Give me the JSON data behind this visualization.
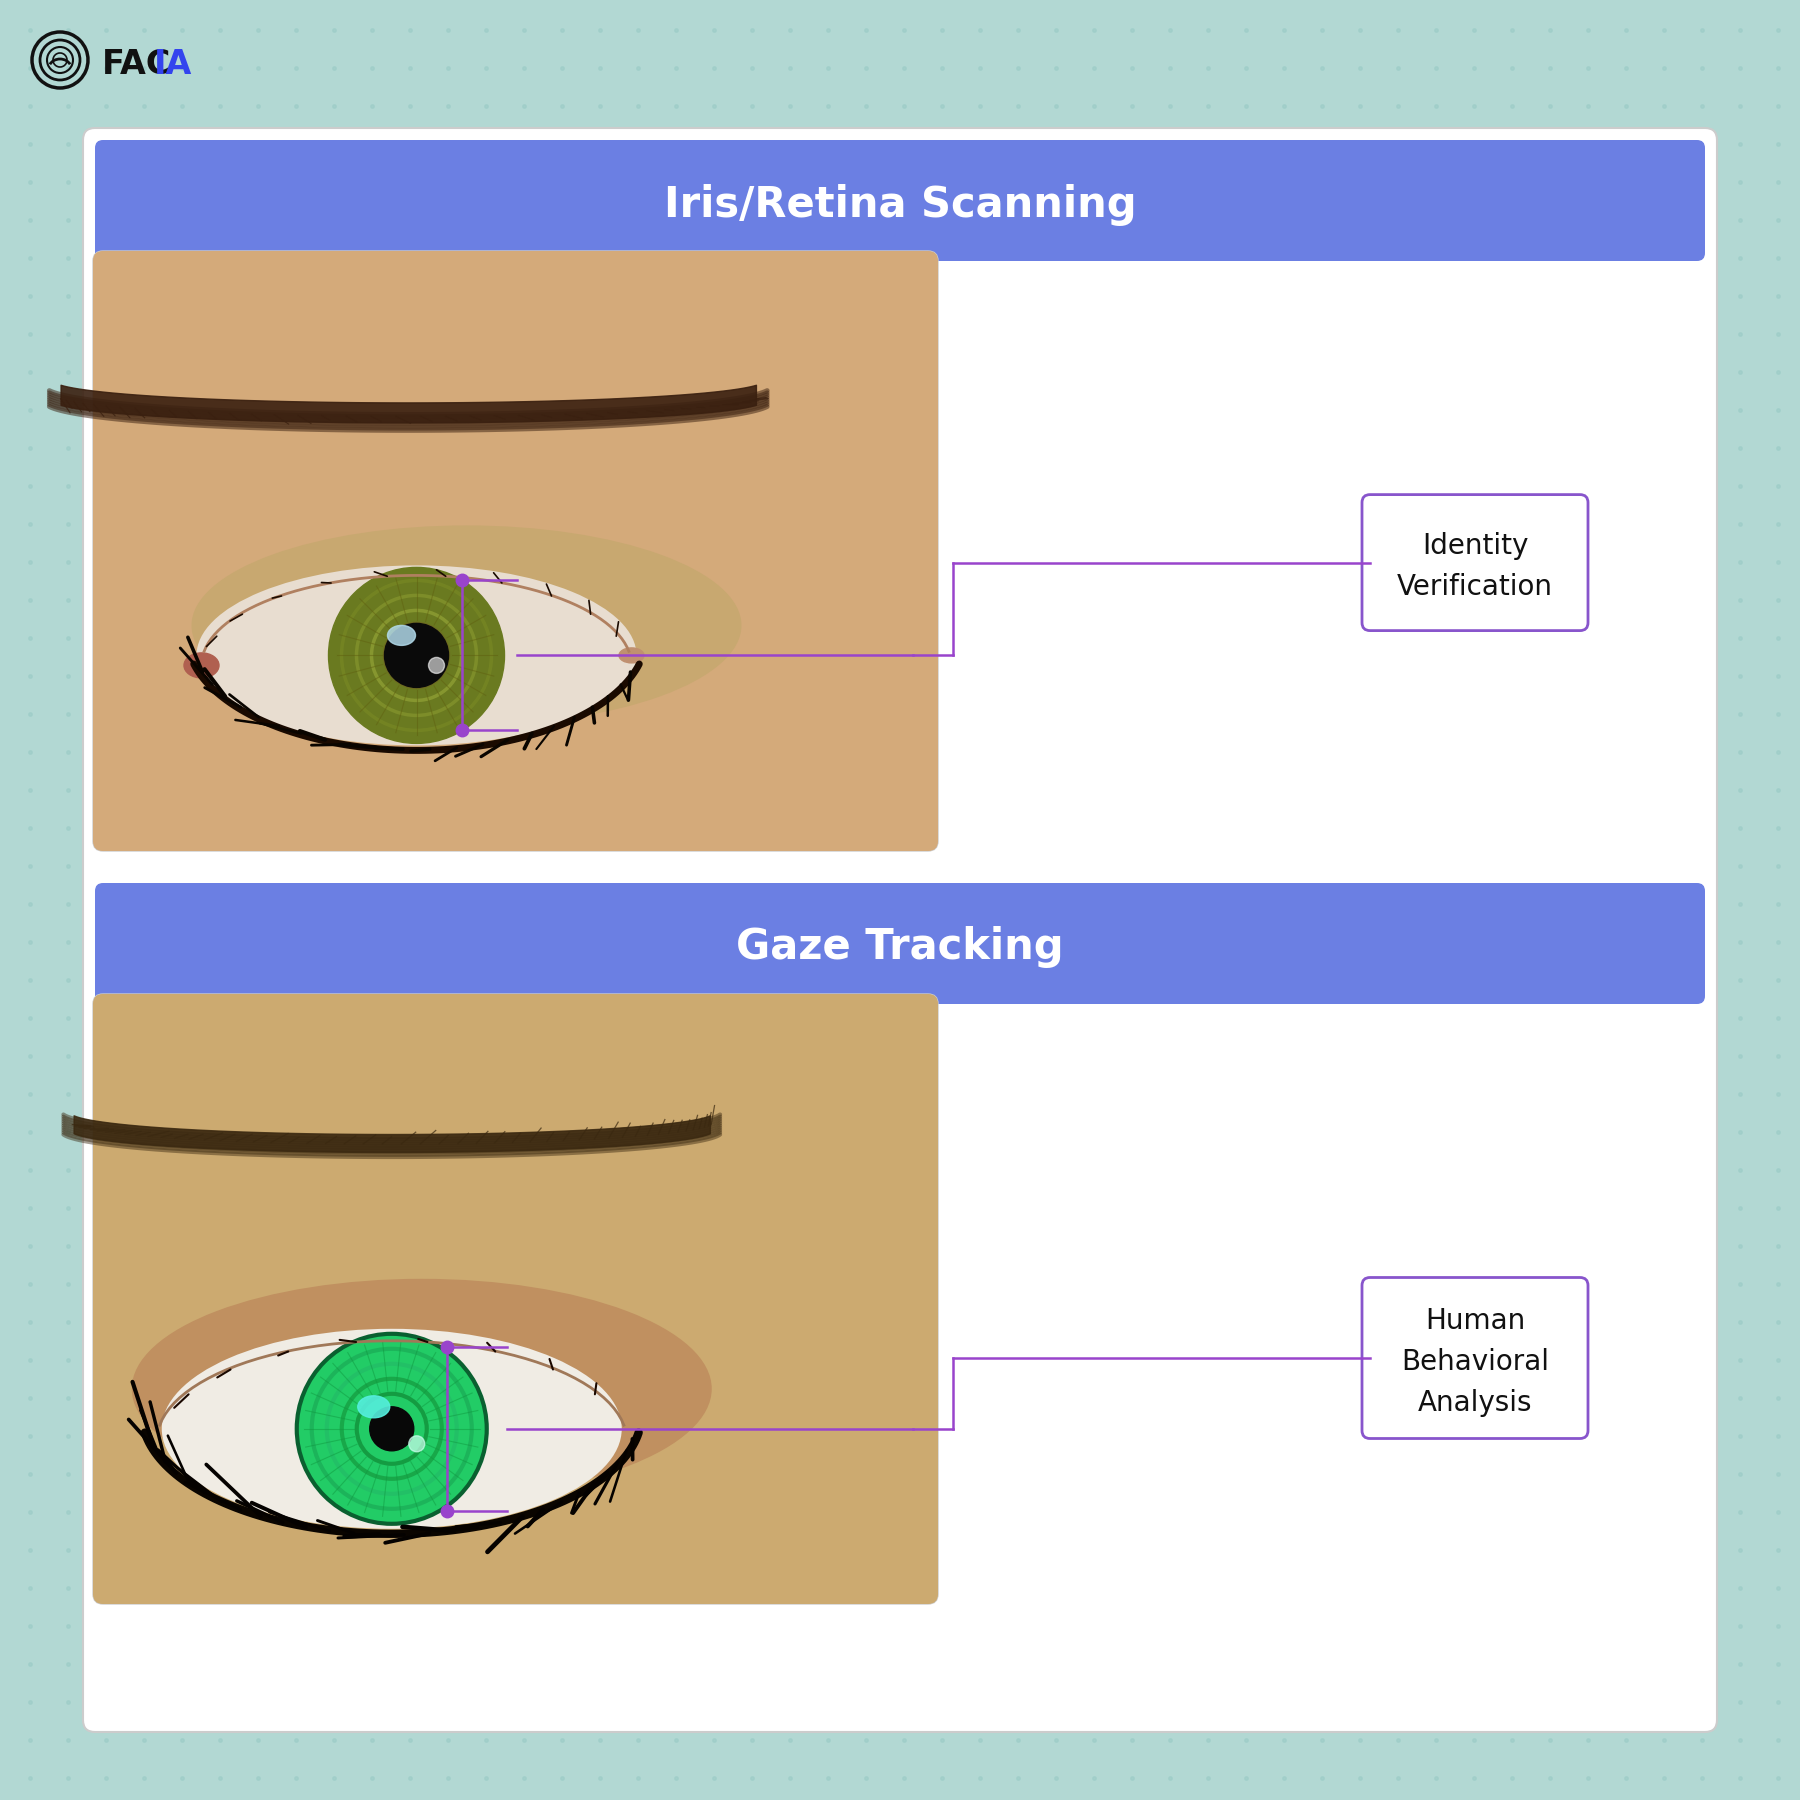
{
  "bg_color": "#b2d8d3",
  "bg_grid_color": "#9ecdc8",
  "card_bg": "#ffffff",
  "header_color": "#6b7fe3",
  "header_text_color": "#ffffff",
  "section1_title": "Iris/Retina Scanning",
  "section2_title": "Gaze Tracking",
  "label1_text": "Identity\nVerification",
  "label2_text": "Human\nBehavioral\nAnalysis",
  "label_border_color": "#8855cc",
  "label_dot_color": "#9944cc",
  "label_line_color": "#9944cc",
  "label_text_color": "#111111",
  "logo_black": "#111111",
  "logo_blue": "#3344ee",
  "title_fontsize": 30,
  "label_fontsize": 20,
  "logo_fontsize": 24,
  "eye1_skin": "#c4956a",
  "eye1_skin_light": "#d4aa7a",
  "eye1_brow": "#3a2010",
  "eye1_iris_outer": "#6a7a20",
  "eye1_iris_mid": "#8a9a30",
  "eye1_iris_inner": "#aab040",
  "eye1_pupil": "#0a0a0a",
  "eye1_white": "#e8ddd0",
  "eye1_hl": "#b0d8e8",
  "eye2_skin": "#c09060",
  "eye2_skin_light": "#ccaa70",
  "eye2_brow": "#3a2810",
  "eye2_iris": "#22cc66",
  "eye2_iris2": "#18aa55",
  "eye2_iris3": "#44ddaa",
  "eye2_pupil": "#080808",
  "eye2_white": "#f0ece4",
  "eye2_hl": "#55eedd"
}
